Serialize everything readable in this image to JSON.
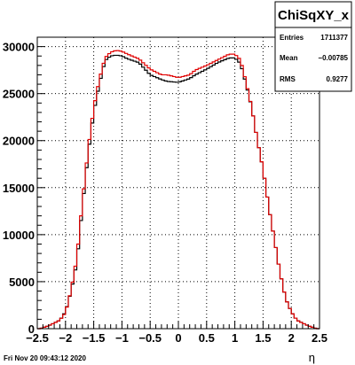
{
  "chart_data": {
    "type": "histogram",
    "title": "",
    "xlabel": "η",
    "ylabel": "",
    "xlim": [
      -2.5,
      2.5
    ],
    "ylim": [
      0,
      31000
    ],
    "grid": true,
    "bin_width": 0.05,
    "x_ticks": [
      "−2.5",
      "−2",
      "−1.5",
      "−1",
      "−0.5",
      "0",
      "0.5",
      "1",
      "1.5",
      "2",
      "2.5"
    ],
    "x_tick_values": [
      -2.5,
      -2,
      -1.5,
      -1,
      -0.5,
      0,
      0.5,
      1,
      1.5,
      2,
      2.5
    ],
    "y_ticks": [
      "0",
      "5000",
      "10000",
      "15000",
      "20000",
      "25000",
      "30000"
    ],
    "y_tick_values": [
      0,
      5000,
      10000,
      15000,
      20000,
      25000,
      30000
    ],
    "stats": {
      "name": "ChiSqXY_x",
      "rows": [
        {
          "label": "Entries",
          "value": "1711377"
        },
        {
          "label": "Mean",
          "value": "−0.00785"
        },
        {
          "label": "RMS",
          "value": "0.9277"
        }
      ]
    },
    "date_stamp": "Fri Nov 20 09:43:12 2020",
    "series": [
      {
        "color": "#000000",
        "knots": [
          [
            -2.45,
            0
          ],
          [
            -2.3,
            300
          ],
          [
            -2.1,
            900
          ],
          [
            -2.0,
            1800
          ],
          [
            -1.9,
            4000
          ],
          [
            -1.8,
            7000
          ],
          [
            -1.7,
            13000
          ],
          [
            -1.6,
            18500
          ],
          [
            -1.5,
            23000
          ],
          [
            -1.4,
            26000
          ],
          [
            -1.3,
            28500
          ],
          [
            -1.2,
            29000
          ],
          [
            -1.1,
            29100
          ],
          [
            -1.0,
            29000
          ],
          [
            -0.9,
            28700
          ],
          [
            -0.7,
            28300
          ],
          [
            -0.5,
            27000
          ],
          [
            -0.3,
            26500
          ],
          [
            -0.2,
            26300
          ],
          [
            0.0,
            26200
          ],
          [
            0.2,
            26600
          ],
          [
            0.3,
            27000
          ],
          [
            0.5,
            27600
          ],
          [
            0.7,
            28300
          ],
          [
            0.9,
            28800
          ],
          [
            1.0,
            28800
          ],
          [
            1.1,
            28200
          ],
          [
            1.2,
            26000
          ],
          [
            1.3,
            23500
          ],
          [
            1.4,
            20000
          ],
          [
            1.5,
            17000
          ],
          [
            1.6,
            13000
          ],
          [
            1.7,
            9500
          ],
          [
            1.8,
            6000
          ],
          [
            1.9,
            3200
          ],
          [
            2.0,
            1800
          ],
          [
            2.1,
            900
          ],
          [
            2.3,
            300
          ],
          [
            2.45,
            0
          ]
        ]
      },
      {
        "color": "#e00000",
        "knots": [
          [
            -2.45,
            0
          ],
          [
            -2.3,
            300
          ],
          [
            -2.1,
            900
          ],
          [
            -2.0,
            1700
          ],
          [
            -1.9,
            4100
          ],
          [
            -1.8,
            7500
          ],
          [
            -1.7,
            13500
          ],
          [
            -1.6,
            19000
          ],
          [
            -1.5,
            23500
          ],
          [
            -1.4,
            26500
          ],
          [
            -1.3,
            28800
          ],
          [
            -1.2,
            29400
          ],
          [
            -1.1,
            29600
          ],
          [
            -1.0,
            29500
          ],
          [
            -0.9,
            29200
          ],
          [
            -0.7,
            28700
          ],
          [
            -0.5,
            27600
          ],
          [
            -0.3,
            27000
          ],
          [
            -0.2,
            27000
          ],
          [
            0.0,
            26700
          ],
          [
            0.2,
            27000
          ],
          [
            0.3,
            27500
          ],
          [
            0.5,
            28000
          ],
          [
            0.7,
            28600
          ],
          [
            0.9,
            29200
          ],
          [
            1.0,
            29200
          ],
          [
            1.1,
            28600
          ],
          [
            1.2,
            26200
          ],
          [
            1.3,
            23500
          ],
          [
            1.4,
            20000
          ],
          [
            1.5,
            17000
          ],
          [
            1.6,
            13000
          ],
          [
            1.7,
            9500
          ],
          [
            1.8,
            6000
          ],
          [
            1.9,
            3200
          ],
          [
            2.0,
            1800
          ],
          [
            2.1,
            900
          ],
          [
            2.3,
            300
          ],
          [
            2.45,
            0
          ]
        ]
      }
    ]
  }
}
